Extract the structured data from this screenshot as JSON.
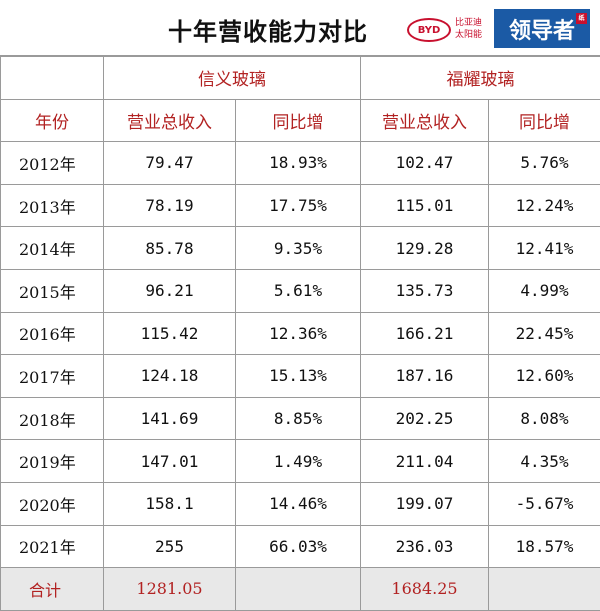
{
  "title": "十年营收能力对比",
  "logos": {
    "byd_mark": "BYD",
    "byd_text": "比亚迪\n太阳能",
    "leader_text": "领导者",
    "leader_seal": "纸"
  },
  "colors": {
    "header_red": "#b22222",
    "badge_blue": "#1b5aa5",
    "logo_red": "#c8102e",
    "total_bg": "#e8e8e8"
  },
  "companies": [
    "信义玻璃",
    "福耀玻璃"
  ],
  "columns": {
    "year": "年份",
    "revenue": "营业总收入",
    "growth": "同比增"
  },
  "rows": [
    {
      "year": "2012年",
      "xinyi_revenue": "79.47",
      "xinyi_growth": "18.93%",
      "fuyao_revenue": "102.47",
      "fuyao_growth": "5.76%"
    },
    {
      "year": "2013年",
      "xinyi_revenue": "78.19",
      "xinyi_growth": "17.75%",
      "fuyao_revenue": "115.01",
      "fuyao_growth": "12.24%"
    },
    {
      "year": "2014年",
      "xinyi_revenue": "85.78",
      "xinyi_growth": "9.35%",
      "fuyao_revenue": "129.28",
      "fuyao_growth": "12.41%"
    },
    {
      "year": "2015年",
      "xinyi_revenue": "96.21",
      "xinyi_growth": "5.61%",
      "fuyao_revenue": "135.73",
      "fuyao_growth": "4.99%"
    },
    {
      "year": "2016年",
      "xinyi_revenue": "115.42",
      "xinyi_growth": "12.36%",
      "fuyao_revenue": "166.21",
      "fuyao_growth": "22.45%"
    },
    {
      "year": "2017年",
      "xinyi_revenue": "124.18",
      "xinyi_growth": "15.13%",
      "fuyao_revenue": "187.16",
      "fuyao_growth": "12.60%"
    },
    {
      "year": "2018年",
      "xinyi_revenue": "141.69",
      "xinyi_growth": "8.85%",
      "fuyao_revenue": "202.25",
      "fuyao_growth": "8.08%"
    },
    {
      "year": "2019年",
      "xinyi_revenue": "147.01",
      "xinyi_growth": "1.49%",
      "fuyao_revenue": "211.04",
      "fuyao_growth": "4.35%"
    },
    {
      "year": "2020年",
      "xinyi_revenue": "158.1",
      "xinyi_growth": "14.46%",
      "fuyao_revenue": "199.07",
      "fuyao_growth": "-5.67%"
    },
    {
      "year": "2021年",
      "xinyi_revenue": "255",
      "xinyi_growth": "66.03%",
      "fuyao_revenue": "236.03",
      "fuyao_growth": "18.57%"
    }
  ],
  "total": {
    "label": "合计",
    "xinyi_revenue": "1281.05",
    "fuyao_revenue": "1684.25"
  }
}
